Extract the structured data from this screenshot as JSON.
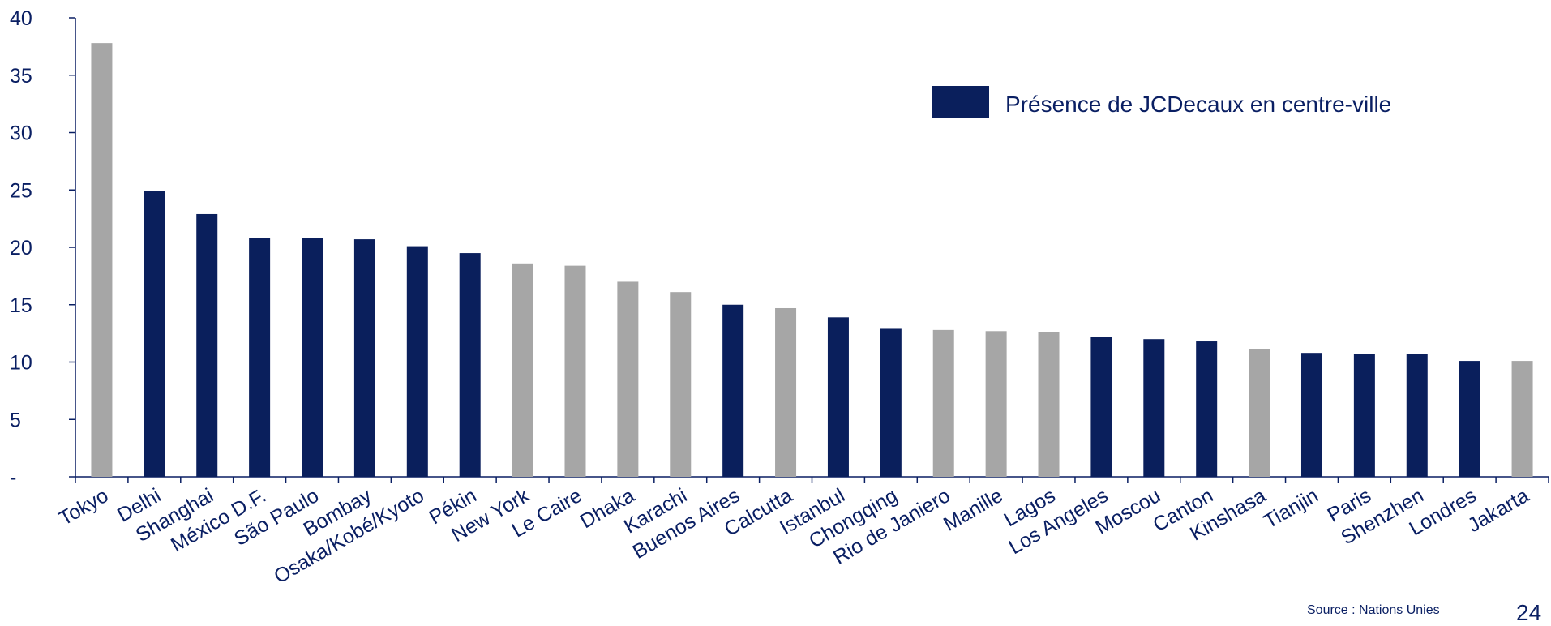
{
  "chart_data": {
    "type": "bar",
    "categories": [
      "Tokyo",
      "Delhi",
      "Shanghai",
      "México D.F.",
      "São Paulo",
      "Bombay",
      "Osaka/Kobé/Kyoto",
      "Pékin",
      "New York",
      "Le Caire",
      "Dhaka",
      "Karachi",
      "Buenos Aires",
      "Calcutta",
      "Istanbul",
      "Chongqing",
      "Rio de Janiero",
      "Manille",
      "Lagos",
      "Los Angeles",
      "Moscou",
      "Canton",
      "Kinshasa",
      "Tianjin",
      "Paris",
      "Shenzhen",
      "Londres",
      "Jakarta"
    ],
    "values": [
      37.8,
      24.9,
      22.9,
      20.8,
      20.8,
      20.7,
      20.1,
      19.5,
      18.6,
      18.4,
      17.0,
      16.1,
      15.0,
      14.7,
      13.9,
      12.9,
      12.8,
      12.7,
      12.6,
      12.2,
      12.0,
      11.8,
      11.1,
      10.8,
      10.7,
      10.7,
      10.1,
      10.1
    ],
    "jcdecaux_presence": [
      false,
      true,
      true,
      true,
      true,
      true,
      true,
      true,
      false,
      false,
      false,
      false,
      true,
      false,
      true,
      true,
      false,
      false,
      false,
      true,
      true,
      true,
      false,
      true,
      true,
      true,
      true,
      false
    ],
    "yticks": [
      "-",
      "5",
      "10",
      "15",
      "20",
      "25",
      "30",
      "35",
      "40"
    ],
    "ylim": [
      0,
      40
    ],
    "legend": {
      "label": "Présence de JCDecaux en centre-ville",
      "position": "top-right"
    },
    "colors": {
      "presence": "#0a1f5c",
      "absence": "#a6a6a6",
      "axis": "#0a1f63"
    },
    "grid": false
  },
  "footer": {
    "source": "Source : Nations Unies",
    "page_number": "24"
  }
}
